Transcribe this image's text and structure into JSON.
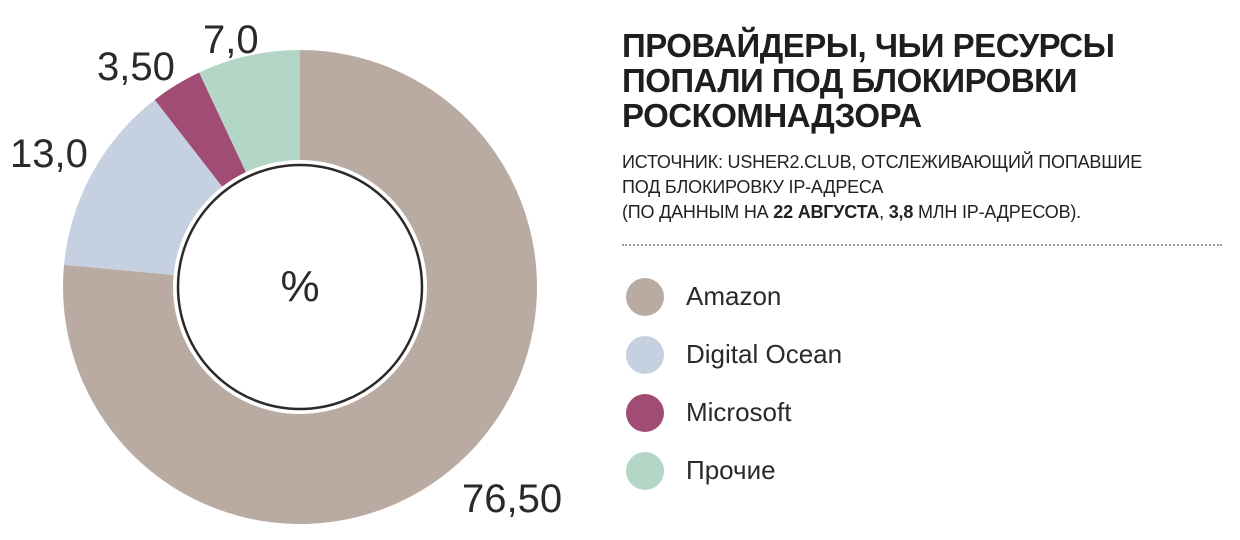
{
  "chart_data": {
    "type": "pie",
    "title_lines": [
      "ПРОВАЙДЕРЫ, ЧЬИ РЕСУРСЫ",
      "ПОПАЛИ ПОД БЛОКИРОВКИ",
      "РОСКОМНАДЗОРА"
    ],
    "unit_label": "%",
    "source": {
      "line1": "ИСТОЧНИК: USHER2.CLUB, ОТСЛЕЖИВАЮЩИЙ ПОПАВШИЕ",
      "line2": "ПОД БЛОКИРОВКУ IP-АДРЕСА",
      "line3_a": "(ПО ДАННЫМ НА ",
      "line3_b": "22 АВГУСТА",
      "line3_c": ", ",
      "line3_d": "3,8",
      "line3_e": " МЛН IP-АДРЕСОВ)."
    },
    "slices": [
      {
        "name": "Amazon",
        "value": 76.5,
        "label": "76,50",
        "color": "#b9aba2"
      },
      {
        "name": "Digital Ocean",
        "value": 13.0,
        "label": "13,0",
        "color": "#c5d0e0"
      },
      {
        "name": "Microsoft",
        "value": 3.5,
        "label": "3,50",
        "color": "#a04c74"
      },
      {
        "name": "Прочие",
        "value": 7.0,
        "label": "7,0",
        "color": "#b3d6c6"
      }
    ],
    "legend_position": "right"
  }
}
